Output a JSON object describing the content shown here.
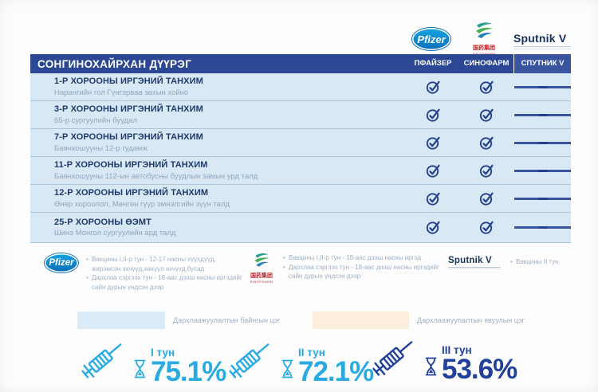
{
  "colors": {
    "header_blue": "#2c4793",
    "row_bg": "#d8e9f5",
    "title_navy": "#1e3a6d",
    "subtitle_grey": "#8fa6bd",
    "check_navy": "#233f8e",
    "cyan": "#29abe2",
    "stat_navy": "#21409a"
  },
  "logos": {
    "pfizer": "Pfizer",
    "sinopharm_cn": "国药集团",
    "sinopharm_en": "SINOPHARM",
    "sputnik": "Sputnik V"
  },
  "table": {
    "title": "СОНГИНОХАЙРХАН ДҮҮРЭГ",
    "columns": [
      "ПФАЙЗЕР",
      "СИНОФАРМ",
      "СПУТНИК V"
    ],
    "rows": [
      {
        "name": "1-Р ХОРООНЫ ИРГЭНИЙ ТАНХИМ",
        "address": "Нарангийн гол Гүнгэрваа захын хойно",
        "pfizer": true,
        "sinopharm": true,
        "sputnik": false
      },
      {
        "name": "3-Р ХОРООНЫ ИРГЭНИЙ ТАНХИМ",
        "address": "65-р сургуулийн буудал",
        "pfizer": true,
        "sinopharm": true,
        "sputnik": false
      },
      {
        "name": "7-Р ХОРООНЫ ИРГЭНИЙ ТАНХИМ",
        "address": "Баянхошууны 12-р гудамж",
        "pfizer": true,
        "sinopharm": true,
        "sputnik": false
      },
      {
        "name": "11-Р ХОРООНЫ ИРГЭНИЙ ТАНХИМ",
        "address": "Баянхошууны 112-ын автобусны буудлын замын урд талд",
        "pfizer": true,
        "sinopharm": true,
        "sputnik": false
      },
      {
        "name": "12-Р ХОРООНЫ ИРГЭНИЙ ТАНХИМ",
        "address": "Өнөр хороолол, Мөнгөн гүүр эмнэлгийн зүүн талд",
        "pfizer": true,
        "sinopharm": true,
        "sputnik": false
      },
      {
        "name": "25-Р ХОРООНЫ ӨЭМТ",
        "address": "Шинэ Монгол сургуулийн ард талд",
        "pfizer": true,
        "sinopharm": true,
        "sputnik": false
      }
    ]
  },
  "footnotes": {
    "pfizer": [
      "Вакцины I,II-р тун - 12-17 насны хүүхдүүд, жирэмсэн эхчүүд,хөхүүл эхчүүд,бусад",
      "Дархлаа сэргээх тун - 18-аас дээш насны иргэдийг сайн дурын үндсэн дээр"
    ],
    "sinopharm": [
      "Вакцины I,II-р тун - 18-аас дээш насны иргэд",
      "Дархлаа сэргээх тун - 18-аас дээш насны иргэдийг сайн дурын үндсэн дээр"
    ],
    "sputnik": [
      "Вакцины II тун"
    ]
  },
  "legend": {
    "items": [
      {
        "label": "Дархлаажуулалтын байнгын цэг",
        "color": "#dcebf8"
      },
      {
        "label": "Дархлаажуулалтын явуулын цэг",
        "color": "#fbeedb"
      }
    ]
  },
  "stats": {
    "items": [
      {
        "label": "I тун",
        "value": "75.1%",
        "color": "#29abe2"
      },
      {
        "label": "II тун",
        "value": "72.1%",
        "color": "#29abe2"
      },
      {
        "label": "III тун",
        "value": "53.6%",
        "color": "#21409a"
      }
    ]
  }
}
